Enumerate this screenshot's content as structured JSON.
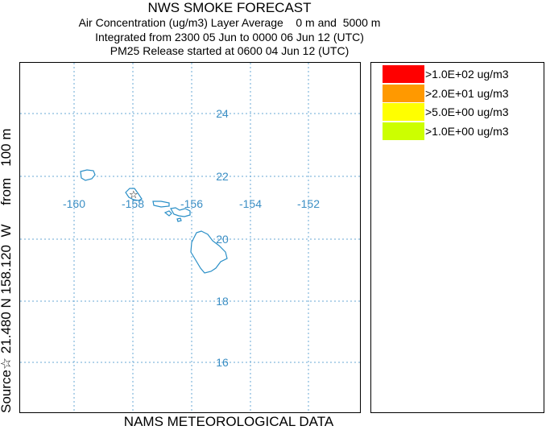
{
  "header": {
    "title": "NWS SMOKE FORECAST",
    "line2": "Air Concentration (ug/m3) Layer Average    0 m and  5000 m",
    "line3": "Integrated from 2300 05 Jun to 0000 06 Jun 12 (UTC)",
    "line4": "PM25 Release started at 0600 04 Jun 12 (UTC)"
  },
  "side_label": "Source☆ 21.480 N 158.120  W     from   100 m",
  "bottom_label": "NAMS METEOROLOGICAL DATA",
  "map": {
    "longitude_labels": [
      "-160",
      "-158",
      "-156",
      "-154",
      "-152"
    ],
    "latitude_labels": [
      "24",
      "22",
      "20",
      "18",
      "16"
    ],
    "grid_color": "#6aa9d6",
    "label_color": "#3a8ec4",
    "coastline_color": "#2a8fc7",
    "source_marker": "star-icon"
  },
  "legend": {
    "items": [
      {
        "label": ">1.0E+02 ug/m3",
        "color": "#ff0000"
      },
      {
        "label": ">2.0E+01 ug/m3",
        "color": "#ff9900"
      },
      {
        "label": ">5.0E+00 ug/m3",
        "color": "#ffff00"
      },
      {
        "label": ">1.0E+00 ug/m3",
        "color": "#ccff00"
      }
    ]
  }
}
